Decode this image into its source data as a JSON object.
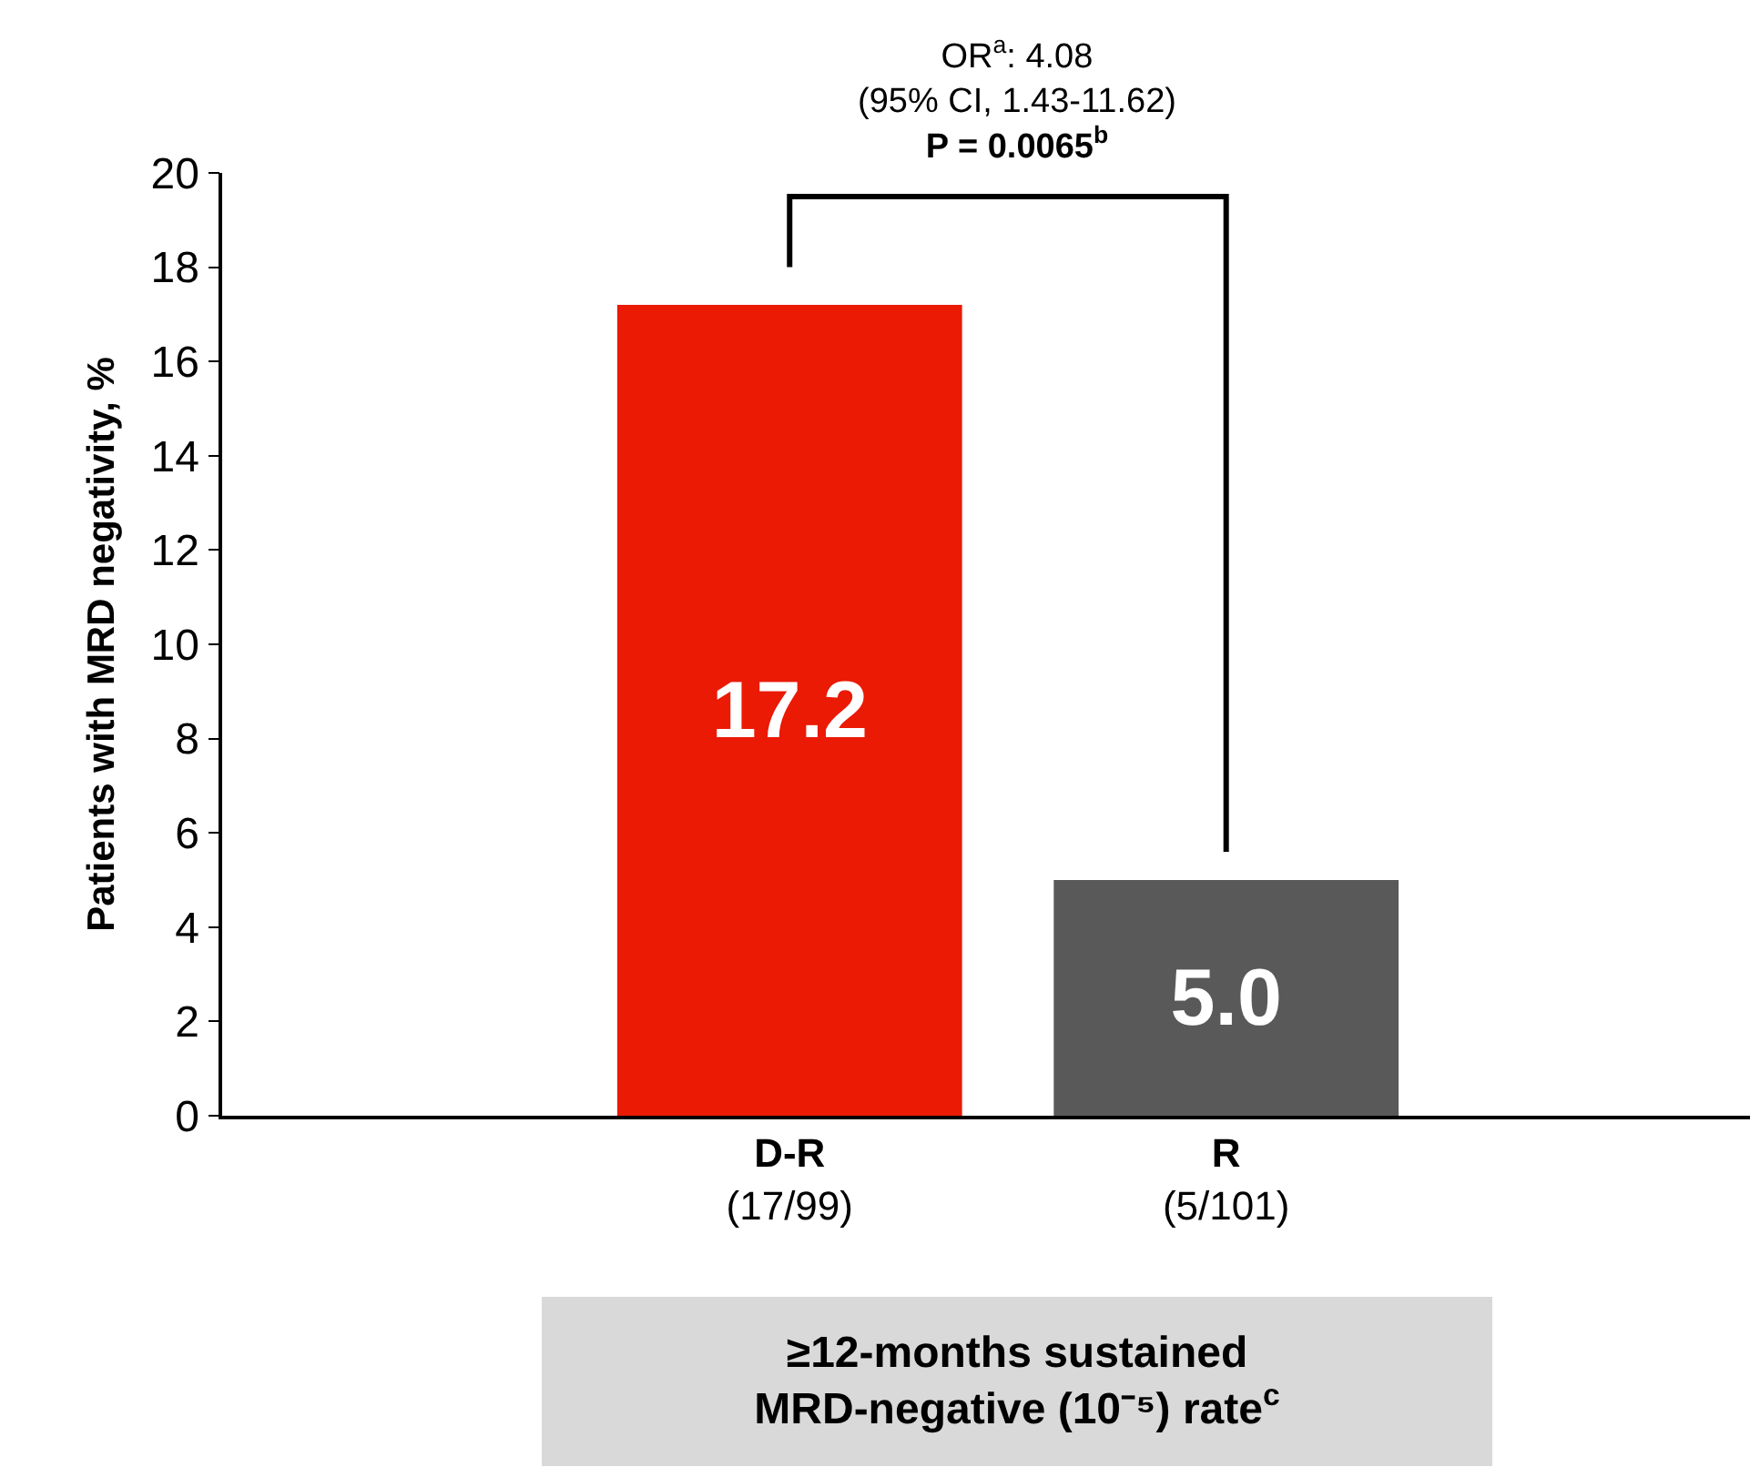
{
  "chart_data": {
    "type": "bar",
    "categories": [
      "D-R\n(17/99)",
      "R\n(5/101)"
    ],
    "values": [
      17.2,
      5.0
    ],
    "colors": [
      "#ea1a05",
      "#595959"
    ],
    "value_labels": [
      "17.2",
      "5.0"
    ],
    "ylabel": "Patients with MRD negativity, %",
    "ylim": [
      0,
      20
    ],
    "yticks": [
      0,
      2,
      4,
      6,
      8,
      10,
      12,
      14,
      16,
      18,
      20
    ],
    "annotations": [
      "OR$^{a}$: 4.08\n(95% CI, 1.43-11.62)\nP = 0.0065$^{b}$",
      "≥12-months sustained\nMRD-negative (10⁻⁵) rate$^{c}$"
    ],
    "legend": false
  }
}
